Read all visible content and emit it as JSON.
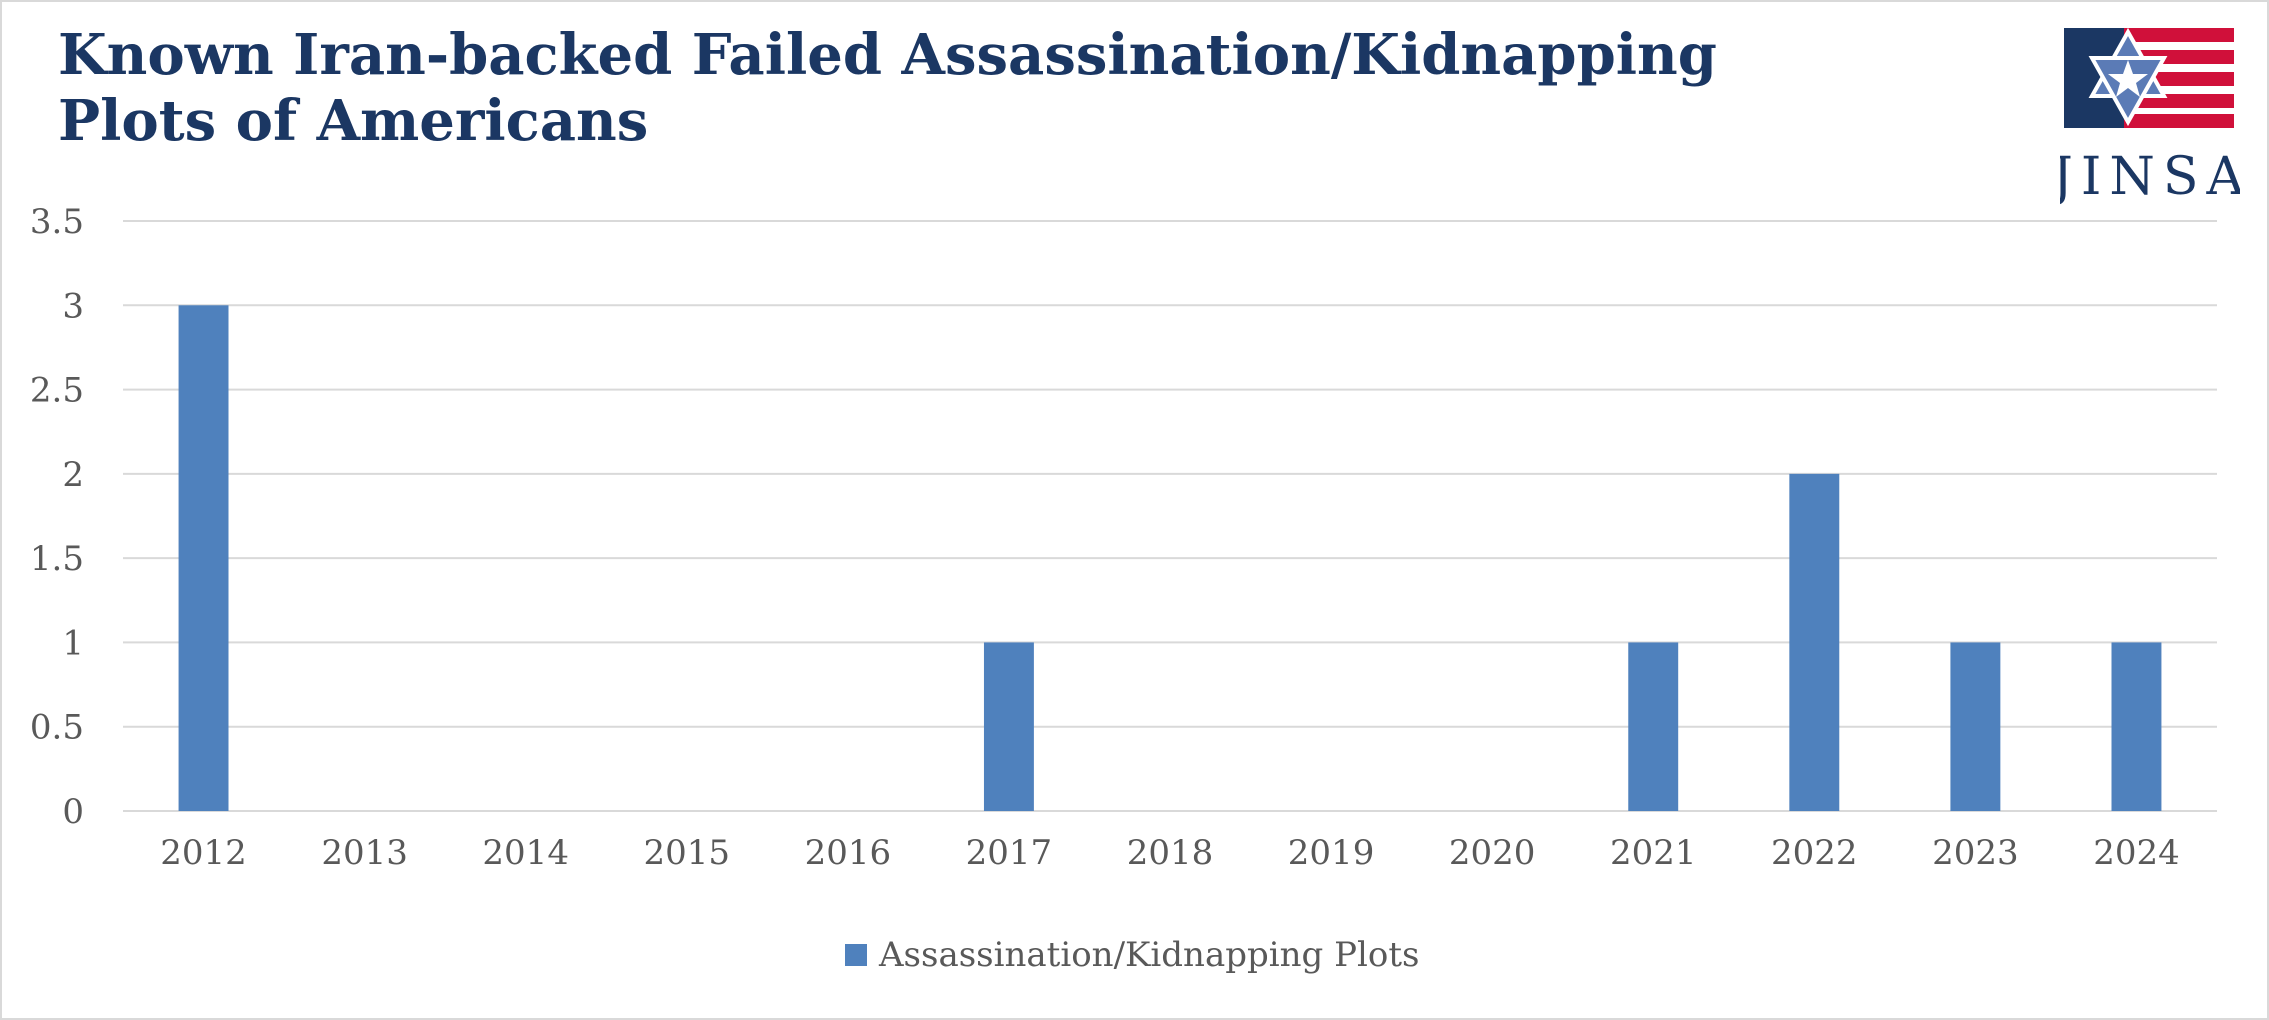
{
  "title": "Known Iran-backed Failed Assassination/Kidnapping Plots of Americans",
  "logo": {
    "text": "JINSA",
    "colors": {
      "navy": "#1b3763",
      "red": "#d0103a",
      "star": "#5b7bb6"
    }
  },
  "chart_data": {
    "type": "bar",
    "title": "Known Iran-backed Failed Assassination/Kidnapping Plots of Americans",
    "categories": [
      "2012",
      "2013",
      "2014",
      "2015",
      "2016",
      "2017",
      "2018",
      "2019",
      "2020",
      "2021",
      "2022",
      "2023",
      "2024"
    ],
    "series": [
      {
        "name": "Assassination/Kidnapping Plots",
        "values": [
          3,
          0,
          0,
          0,
          0,
          1,
          0,
          0,
          0,
          1,
          2,
          1,
          1
        ],
        "color": "#4f81bd"
      }
    ],
    "ylim": [
      0,
      3.5
    ],
    "yticks": [
      "0",
      "0.5",
      "1",
      "1.5",
      "2",
      "2.5",
      "3",
      "3.5"
    ],
    "grid": true,
    "legend": "bottom"
  }
}
